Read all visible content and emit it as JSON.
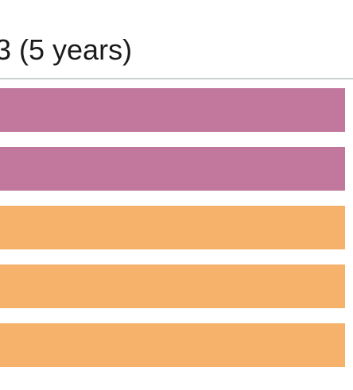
{
  "chart_data": {
    "type": "bar",
    "orientation": "horizontal",
    "title": "3 (5 years)",
    "xlabel": "",
    "ylabel": "",
    "categories": [
      "",
      "",
      "",
      "",
      ""
    ],
    "values": [
      1,
      1,
      1,
      1,
      1
    ],
    "bar_colors": [
      "#c2789c",
      "#c2789c",
      "#f6b26b",
      "#f6b26b",
      "#f6b26b"
    ],
    "axis_line_color": "#c9d1d3",
    "grid": false,
    "legend": "none"
  }
}
